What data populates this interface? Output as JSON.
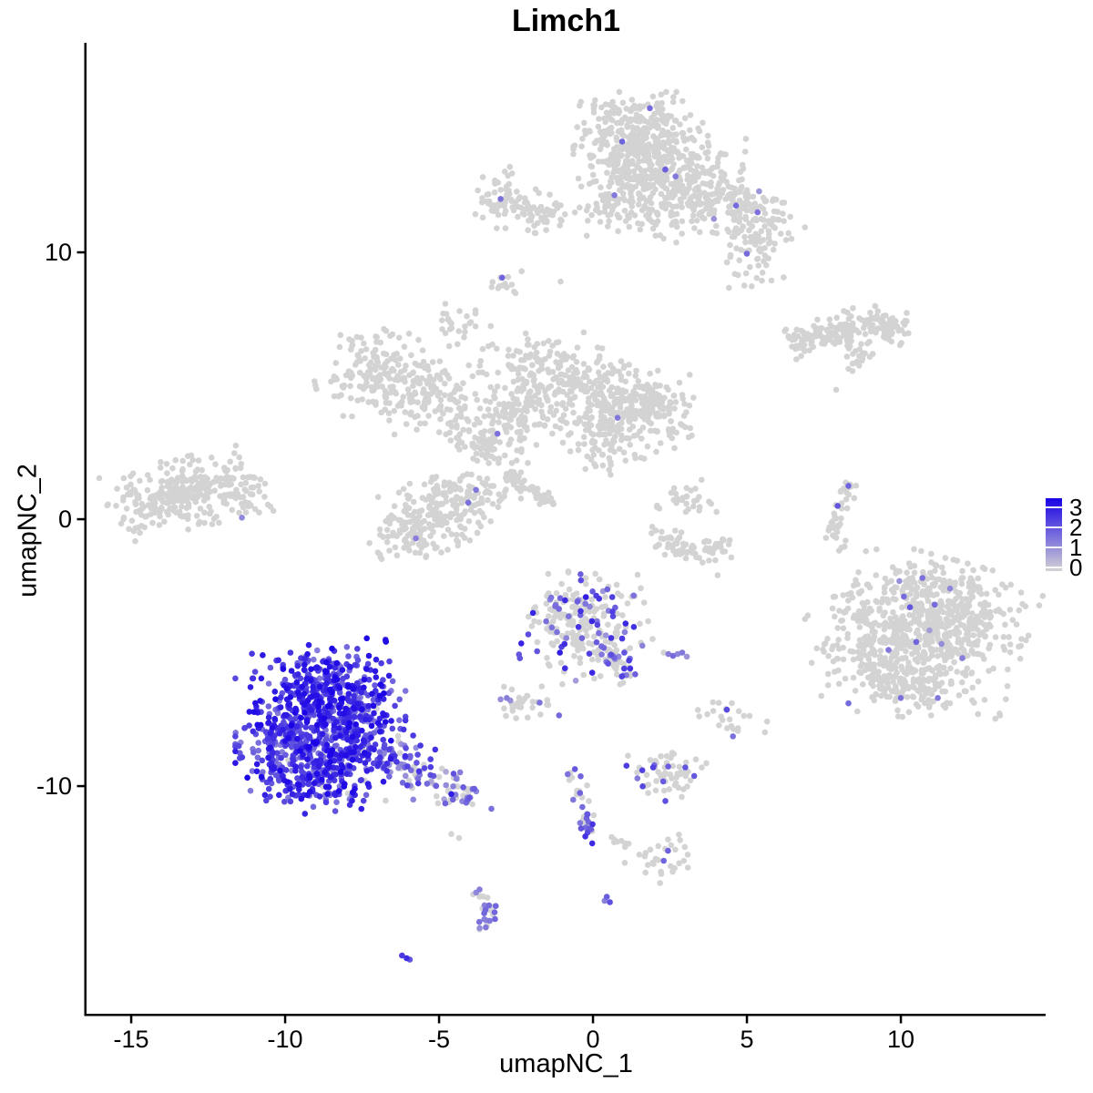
{
  "title": "Limch1",
  "axes": {
    "x": {
      "label": "umapNC_1",
      "ticks": [
        "-15",
        "-10",
        "-5",
        "0",
        "5",
        "10"
      ],
      "tick_values": [
        -15,
        -10,
        -5,
        0,
        5,
        10
      ]
    },
    "y": {
      "label": "umapNC_2",
      "ticks": [
        "10",
        "0",
        "-10"
      ],
      "tick_values": [
        10,
        0,
        -10
      ]
    }
  },
  "legend": {
    "ticks": [
      "3",
      "2",
      "1",
      "0"
    ],
    "tick_values": [
      3,
      2,
      1,
      0
    ]
  },
  "colors": {
    "low": "#d3d3d3",
    "high": "#1902e6",
    "axis": "#000000",
    "background": "#ffffff"
  },
  "chart_data": {
    "type": "scatter",
    "title": "Limch1",
    "xlabel": "umapNC_1",
    "ylabel": "umapNC_2",
    "x_range": [
      -16.4,
      14.7
    ],
    "y_range": [
      -18.5,
      17.8
    ],
    "grid": false,
    "legend_position": "right",
    "color_scale": {
      "low": "#d3d3d3",
      "high": "#1902e6",
      "domain": [
        0,
        3
      ]
    },
    "description": "UMAP feature plot of Limch1 expression (scale 0-3). Grey = no expression; blue = high. Expression concentrated in the bottom-left cluster with a mixed-expression tail, plus scattered positive cells in central and bottom-center clusters.",
    "point_radius_px": 3.3,
    "clusters": [
      {
        "name": "top-apex",
        "type": "gauss",
        "cx": 1.55,
        "cy": 14.4,
        "sx": 0.95,
        "sy": 0.7,
        "rot": 0,
        "n": 300,
        "frac": 0.004,
        "lo": 0.8,
        "hi": 1.6
      },
      {
        "name": "top-mid",
        "type": "gauss",
        "cx": 2.2,
        "cy": 12.9,
        "sx": 1.15,
        "sy": 0.75,
        "rot": -0.1,
        "n": 300,
        "frac": 0.004,
        "lo": 0.8,
        "hi": 1.6
      },
      {
        "name": "top-right-arm",
        "type": "gauss",
        "cx": 4.6,
        "cy": 11.75,
        "sx": 1.05,
        "sy": 0.5,
        "rot": -0.25,
        "n": 150,
        "frac": 0.006,
        "lo": 0.8,
        "hi": 1.4
      },
      {
        "name": "top-right-drop",
        "type": "gauss",
        "cx": 5.3,
        "cy": 10.1,
        "sx": 0.5,
        "sy": 0.7,
        "rot": 0,
        "n": 65,
        "frac": 0,
        "lo": 0,
        "hi": 0
      },
      {
        "name": "top-left-drop",
        "type": "gauss",
        "cx": 0.6,
        "cy": 11.9,
        "sx": 0.45,
        "sy": 0.6,
        "rot": 0,
        "n": 55,
        "frac": 0,
        "lo": 0,
        "hi": 0
      },
      {
        "name": "top-bottom-fringe",
        "type": "gauss",
        "cx": 2.1,
        "cy": 11.4,
        "sx": 1.0,
        "sy": 0.45,
        "rot": 0,
        "n": 55,
        "frac": 0,
        "lo": 0,
        "hi": 0
      },
      {
        "name": "topleft-a",
        "type": "gauss",
        "cx": -2.9,
        "cy": 12.05,
        "sx": 0.4,
        "sy": 0.5,
        "rot": 0,
        "n": 55,
        "frac": 0,
        "lo": 0,
        "hi": 0
      },
      {
        "name": "topleft-b",
        "type": "gauss",
        "cx": -1.9,
        "cy": 11.55,
        "sx": 0.6,
        "sy": 0.35,
        "rot": -0.2,
        "n": 60,
        "frac": 0,
        "lo": 0,
        "hi": 0
      },
      {
        "name": "small-blob-9",
        "type": "gauss",
        "cx": -2.8,
        "cy": 8.85,
        "sx": 0.3,
        "sy": 0.25,
        "rot": 0.4,
        "n": 13,
        "frac": 0,
        "lo": 0,
        "hi": 0
      },
      {
        "name": "small-blob-74",
        "type": "gauss",
        "cx": -4.55,
        "cy": 7.4,
        "sx": 0.32,
        "sy": 0.4,
        "rot": 0,
        "n": 26,
        "frac": 0,
        "lo": 0,
        "hi": 0
      },
      {
        "name": "midleft-a",
        "type": "gauss",
        "cx": -7.0,
        "cy": 5.5,
        "sx": 0.9,
        "sy": 0.7,
        "rot": 0.2,
        "n": 150,
        "frac": 0,
        "lo": 0,
        "hi": 0
      },
      {
        "name": "midleft-b",
        "type": "gauss",
        "cx": -5.6,
        "cy": 4.6,
        "sx": 0.8,
        "sy": 0.6,
        "rot": 0.3,
        "n": 95,
        "frac": 0,
        "lo": 0,
        "hi": 0
      },
      {
        "name": "midleft-bridge",
        "type": "gauss",
        "cx": -4.5,
        "cy": 3.8,
        "sx": 0.5,
        "sy": 0.5,
        "rot": 0,
        "n": 30,
        "frac": 0,
        "lo": 0,
        "hi": 0
      },
      {
        "name": "central-top",
        "type": "gauss",
        "cx": -1.3,
        "cy": 5.3,
        "sx": 1.05,
        "sy": 0.7,
        "rot": -0.15,
        "n": 210,
        "frac": 0.004,
        "lo": 0.8,
        "hi": 1.4
      },
      {
        "name": "central-right",
        "type": "gauss",
        "cx": 0.7,
        "cy": 3.95,
        "sx": 1.0,
        "sy": 0.8,
        "rot": 0.2,
        "n": 230,
        "frac": 0.004,
        "lo": 0.8,
        "hi": 1.4
      },
      {
        "name": "central-left",
        "type": "gauss",
        "cx": -2.7,
        "cy": 3.6,
        "sx": 0.75,
        "sy": 0.65,
        "rot": 0,
        "n": 140,
        "frac": 0,
        "lo": 0,
        "hi": 0
      },
      {
        "name": "central-arm",
        "type": "line",
        "x1": -3.9,
        "y1": 2.2,
        "x2": -3.2,
        "y2": 3.2,
        "w": 0.25,
        "n": 25,
        "frac": 0,
        "lo": 0,
        "hi": 0
      },
      {
        "name": "central-right-knob",
        "type": "gauss",
        "cx": 2.0,
        "cy": 4.3,
        "sx": 0.55,
        "sy": 0.55,
        "rot": 0,
        "n": 90,
        "frac": 0,
        "lo": 0,
        "hi": 0
      },
      {
        "name": "central-below",
        "type": "gauss",
        "cx": 0.3,
        "cy": 2.7,
        "sx": 0.6,
        "sy": 0.45,
        "rot": 0,
        "n": 28,
        "frac": 0,
        "lo": 0,
        "hi": 0
      },
      {
        "name": "left-main",
        "type": "gauss",
        "cx": -13.5,
        "cy": 0.9,
        "sx": 1.0,
        "sy": 0.58,
        "rot": 0.25,
        "n": 250,
        "frac": 0.004,
        "lo": 0.8,
        "hi": 1.2
      },
      {
        "name": "left-arm",
        "type": "gauss",
        "cx": -11.8,
        "cy": 1.25,
        "sx": 0.7,
        "sy": 0.3,
        "rot": 0.1,
        "n": 55,
        "frac": 0,
        "lo": 0,
        "hi": 0
      },
      {
        "name": "left-tail",
        "type": "gauss",
        "cx": -11.3,
        "cy": 0.4,
        "sx": 0.4,
        "sy": 0.2,
        "rot": 0,
        "n": 15,
        "frac": 0,
        "lo": 0,
        "hi": 0
      },
      {
        "name": "mid-blob",
        "type": "gauss",
        "cx": -4.9,
        "cy": 0.3,
        "sx": 1.1,
        "sy": 0.6,
        "rot": 0.45,
        "n": 235,
        "frac": 0,
        "lo": 0,
        "hi": 0
      },
      {
        "name": "mid-blob-b",
        "type": "gauss",
        "cx": -6.2,
        "cy": -0.7,
        "sx": 0.5,
        "sy": 0.4,
        "rot": 0.3,
        "n": 45,
        "frac": 0,
        "lo": 0,
        "hi": 0
      },
      {
        "name": "diag-streak",
        "type": "line",
        "x1": -2.75,
        "y1": 1.75,
        "x2": -1.35,
        "y2": 0.55,
        "w": 0.13,
        "n": 65,
        "frac": 0,
        "lo": 0,
        "hi": 0
      },
      {
        "name": "knob-3-07",
        "type": "gauss",
        "cx": 3.05,
        "cy": 0.7,
        "sx": 0.42,
        "sy": 0.35,
        "rot": 0,
        "n": 30,
        "frac": 0,
        "lo": 0,
        "hi": 0
      },
      {
        "name": "arc-a",
        "type": "line",
        "x1": 1.95,
        "y1": -0.4,
        "x2": 3.2,
        "y2": -1.35,
        "w": 0.22,
        "n": 42,
        "frac": 0,
        "lo": 0,
        "hi": 0
      },
      {
        "name": "arc-b",
        "type": "line",
        "x1": 3.2,
        "y1": -1.35,
        "x2": 4.5,
        "y2": -0.95,
        "w": 0.2,
        "n": 30,
        "frac": 0,
        "lo": 0,
        "hi": 0
      },
      {
        "name": "band-right-a",
        "type": "line",
        "x1": 6.4,
        "y1": 6.6,
        "x2": 8.2,
        "y2": 7.1,
        "w": 0.28,
        "n": 90,
        "frac": 0,
        "lo": 0,
        "hi": 0
      },
      {
        "name": "band-right-b",
        "type": "line",
        "x1": 8.2,
        "y1": 7.15,
        "x2": 10.2,
        "y2": 7.3,
        "w": 0.33,
        "n": 95,
        "frac": 0,
        "lo": 0,
        "hi": 0
      },
      {
        "name": "band-tail",
        "type": "gauss",
        "cx": 8.65,
        "cy": 6.1,
        "sx": 0.3,
        "sy": 0.22,
        "rot": 0.5,
        "n": 18,
        "frac": 0,
        "lo": 0,
        "hi": 0
      },
      {
        "name": "right-streak-a",
        "type": "line",
        "x1": 8.35,
        "y1": 1.3,
        "x2": 7.75,
        "y2": -0.4,
        "w": 0.15,
        "n": 30,
        "frac": 0,
        "lo": 0,
        "hi": 0
      },
      {
        "name": "right-streak-b",
        "type": "line",
        "x1": 7.75,
        "y1": -0.4,
        "x2": 8.05,
        "y2": -1.2,
        "w": 0.13,
        "n": 12,
        "frac": 0,
        "lo": 0,
        "hi": 0
      },
      {
        "name": "right-main",
        "type": "gauss",
        "cx": 11.1,
        "cy": -4.1,
        "sx": 1.3,
        "sy": 1.15,
        "rot": -0.3,
        "n": 620,
        "frac": 0.002,
        "lo": 0.8,
        "hi": 1.4
      },
      {
        "name": "right-left-fringe",
        "type": "gauss",
        "cx": 9.0,
        "cy": -4.9,
        "sx": 0.85,
        "sy": 0.95,
        "rot": 0.2,
        "n": 130,
        "frac": 0,
        "lo": 0,
        "hi": 0
      },
      {
        "name": "right-bottom",
        "type": "gauss",
        "cx": 10.4,
        "cy": -6.3,
        "sx": 0.9,
        "sy": 0.5,
        "rot": -0.15,
        "n": 100,
        "frac": 0,
        "lo": 0,
        "hi": 0
      },
      {
        "name": "right-top-fringe",
        "type": "gauss",
        "cx": 10.7,
        "cy": -2.4,
        "sx": 0.8,
        "sy": 0.35,
        "rot": 0,
        "n": 40,
        "frac": 0,
        "lo": 0,
        "hi": 0
      },
      {
        "name": "center-mixed",
        "type": "gauss",
        "cx": -0.4,
        "cy": -3.95,
        "sx": 0.95,
        "sy": 0.9,
        "rot": 0.2,
        "n": 250,
        "frac": 0.2,
        "lo": 0.7,
        "hi": 2.6
      },
      {
        "name": "center-mixed-tail",
        "type": "line",
        "x1": 0.55,
        "y1": -4.9,
        "x2": 1.15,
        "y2": -6.1,
        "w": 0.22,
        "n": 40,
        "frac": 0.3,
        "lo": 0.8,
        "hi": 2.2
      },
      {
        "name": "blob-left-q",
        "type": "gauss",
        "cx": -2.35,
        "cy": -6.95,
        "sx": 0.42,
        "sy": 0.3,
        "rot": 0,
        "n": 30,
        "frac": 0.05,
        "lo": 0.9,
        "hi": 1.4
      },
      {
        "name": "blob-right-r",
        "type": "gauss",
        "cx": 4.5,
        "cy": -7.55,
        "sx": 0.5,
        "sy": 0.28,
        "rot": -0.2,
        "n": 24,
        "frac": 0.3,
        "lo": 1.0,
        "hi": 2.0
      },
      {
        "name": "bottom-blob-s1",
        "type": "gauss",
        "cx": 2.35,
        "cy": -9.6,
        "sx": 0.58,
        "sy": 0.45,
        "rot": 0,
        "n": 65,
        "frac": 0.13,
        "lo": 1.0,
        "hi": 2.2
      },
      {
        "name": "bottom-streak-top",
        "type": "line",
        "x1": -0.85,
        "y1": -9.1,
        "x2": -0.25,
        "y2": -10.6,
        "w": 0.15,
        "n": 16,
        "frac": 0.15,
        "lo": 1.0,
        "hi": 1.8
      },
      {
        "name": "bottom-streak-mid",
        "type": "line",
        "x1": -0.25,
        "y1": -10.6,
        "x2": -0.05,
        "y2": -12.2,
        "w": 0.13,
        "n": 22,
        "frac": 0.65,
        "lo": 1.2,
        "hi": 2.5
      },
      {
        "name": "bottom-dots-line",
        "type": "line",
        "x1": 0.45,
        "y1": -11.9,
        "x2": 1.15,
        "y2": -12.2,
        "w": 0.07,
        "n": 8,
        "frac": 0,
        "lo": 0,
        "hi": 0
      },
      {
        "name": "bottom-blob-s4",
        "type": "gauss",
        "cx": 2.1,
        "cy": -12.75,
        "sx": 0.5,
        "sy": 0.38,
        "rot": 0.3,
        "n": 30,
        "frac": 0.04,
        "lo": 1.2,
        "hi": 1.7
      },
      {
        "name": "s-cluster-a",
        "type": "line",
        "x1": -3.75,
        "y1": -13.9,
        "x2": -3.3,
        "y2": -14.75,
        "w": 0.18,
        "n": 16,
        "frac": 0.5,
        "lo": 0.8,
        "hi": 1.6
      },
      {
        "name": "s-cluster-b",
        "type": "line",
        "x1": -3.3,
        "y1": -14.75,
        "x2": -3.6,
        "y2": -15.45,
        "w": 0.14,
        "n": 10,
        "frac": 0.5,
        "lo": 0.8,
        "hi": 1.6
      },
      {
        "name": "blue-top",
        "type": "gauss",
        "cx": -8.7,
        "cy": -6.15,
        "sx": 0.95,
        "sy": 0.65,
        "rot": 0.15,
        "n": 230,
        "frac": 0.96,
        "lo": 1.1,
        "hi": 3.0
      },
      {
        "name": "blue-main",
        "type": "gauss",
        "cx": -9.2,
        "cy": -8.15,
        "sx": 1.05,
        "sy": 0.95,
        "rot": 0,
        "n": 400,
        "frac": 0.97,
        "lo": 1.1,
        "hi": 3.0
      },
      {
        "name": "blue-right",
        "type": "gauss",
        "cx": -7.7,
        "cy": -7.5,
        "sx": 0.7,
        "sy": 0.85,
        "rot": 0,
        "n": 190,
        "frac": 0.95,
        "lo": 1.0,
        "hi": 2.9
      },
      {
        "name": "blue-bottom",
        "type": "gauss",
        "cx": -9.0,
        "cy": -9.85,
        "sx": 0.95,
        "sy": 0.5,
        "rot": 0.1,
        "n": 130,
        "frac": 0.96,
        "lo": 1.1,
        "hi": 2.9
      },
      {
        "name": "blue-left-edge",
        "type": "gauss",
        "cx": -10.3,
        "cy": -8.5,
        "sx": 0.38,
        "sy": 0.7,
        "rot": 0,
        "n": 55,
        "frac": 0.95,
        "lo": 1.0,
        "hi": 2.8
      },
      {
        "name": "blue-tail-a",
        "type": "line",
        "x1": -6.8,
        "y1": -8.6,
        "x2": -5.3,
        "y2": -9.7,
        "w": 0.42,
        "n": 85,
        "frac": 0.7,
        "lo": 0.6,
        "hi": 2.4
      },
      {
        "name": "blue-tail-b",
        "type": "line",
        "x1": -5.3,
        "y1": -9.7,
        "x2": -3.9,
        "y2": -10.5,
        "w": 0.3,
        "n": 48,
        "frac": 0.5,
        "lo": 0.5,
        "hi": 1.9
      }
    ],
    "extra_points": [
      [
        1.85,
        15.4,
        1.5
      ],
      [
        0.95,
        14.15,
        1.6
      ],
      [
        2.35,
        13.1,
        1.7
      ],
      [
        4.65,
        11.75,
        1.5
      ],
      [
        5.35,
        11.5,
        1.4
      ],
      [
        5.0,
        9.95,
        1.5
      ],
      [
        -3.0,
        12.0,
        1.4
      ],
      [
        -2.95,
        9.05,
        1.6
      ],
      [
        -1.05,
        8.9,
        0
      ],
      [
        -0.3,
        7.0,
        0
      ],
      [
        0.3,
        6.4,
        0
      ],
      [
        0.8,
        3.8,
        1.3
      ],
      [
        -3.1,
        3.2,
        1.4
      ],
      [
        -3.8,
        1.1,
        1.3
      ],
      [
        -4.05,
        0.62,
        1.4
      ],
      [
        -5.75,
        -0.72,
        1.2
      ],
      [
        8.3,
        1.25,
        1.6
      ],
      [
        7.95,
        0.5,
        1.8
      ],
      [
        7.9,
        4.85,
        0
      ],
      [
        4.05,
        -2.1,
        0
      ],
      [
        10.7,
        -2.2,
        1.4
      ],
      [
        10.1,
        -2.9,
        1.5
      ],
      [
        10.3,
        -3.3,
        1.8
      ],
      [
        11.1,
        -3.2,
        1.5
      ],
      [
        10.5,
        -4.6,
        1.6
      ],
      [
        9.6,
        -4.9,
        1.3
      ],
      [
        10.0,
        -6.7,
        1.4
      ],
      [
        11.2,
        -6.7,
        1.3
      ],
      [
        8.3,
        -6.9,
        1.5
      ],
      [
        12.0,
        -5.2,
        1.2
      ],
      [
        11.6,
        -2.6,
        1.1
      ],
      [
        -1.1,
        -7.35,
        1.5
      ],
      [
        -2.8,
        -6.7,
        1.2
      ],
      [
        -3.0,
        -6.75,
        1.0
      ],
      [
        2.3,
        -5.0,
        0
      ],
      [
        2.45,
        -5.05,
        1.2
      ],
      [
        2.6,
        -5.12,
        1.5
      ],
      [
        2.75,
        -5.05,
        1.1
      ],
      [
        2.9,
        -5.0,
        1.3
      ],
      [
        3.05,
        -5.15,
        0.9
      ],
      [
        3.0,
        -9.3,
        1.8
      ],
      [
        2.3,
        -12.8,
        1.6
      ],
      [
        0.45,
        -14.15,
        1.7
      ],
      [
        0.55,
        -14.35,
        1.9
      ],
      [
        0.38,
        -14.3,
        1.2
      ],
      [
        -6.2,
        -16.35,
        2.2
      ],
      [
        -6.05,
        -16.45,
        2.4
      ],
      [
        -5.95,
        -16.5,
        1.8
      ],
      [
        -4.6,
        -11.8,
        0
      ],
      [
        -4.35,
        -11.95,
        0
      ],
      [
        -3.3,
        -10.85,
        1.4
      ],
      [
        -4.6,
        -10.3,
        2.6
      ]
    ]
  }
}
